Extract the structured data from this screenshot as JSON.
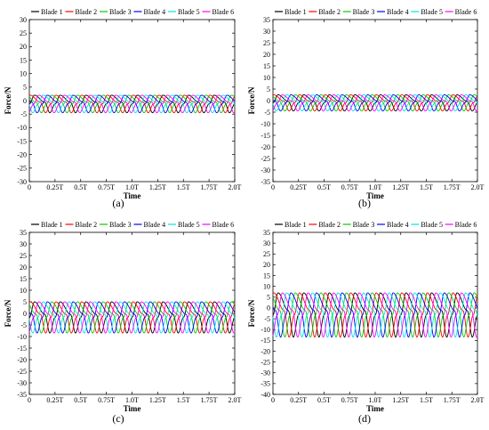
{
  "chart_data": [
    {
      "type": "line",
      "panel_label": "(a)",
      "xlabel": "Time",
      "ylabel": "Force/N",
      "ylim": [
        -30,
        30
      ],
      "yticks": [
        -30,
        -25,
        -20,
        -15,
        -10,
        -5,
        0,
        5,
        10,
        15,
        20,
        25,
        30
      ],
      "xlim": [
        0,
        2.0
      ],
      "xticks": [
        0,
        0.25,
        0.5,
        0.75,
        1.0,
        1.25,
        1.5,
        1.75,
        2.0
      ],
      "xtick_labels": [
        "0",
        "0.25T",
        "0.5T",
        "0.75T",
        "1.0T",
        "1.25T",
        "1.5T",
        "1.75T",
        "2.0T"
      ],
      "grid": false,
      "legend_position": "top",
      "waveform": {
        "max": 2,
        "min": -4.5,
        "period": 0.25,
        "peak_phase": 0.2
      },
      "series": [
        {
          "name": "Blade 1",
          "color": "#000000",
          "phase_offset": 0.0
        },
        {
          "name": "Blade 2",
          "color": "#ff0000",
          "phase_offset": 0.0417
        },
        {
          "name": "Blade 3",
          "color": "#00cc00",
          "phase_offset": 0.0833
        },
        {
          "name": "Blade 4",
          "color": "#0000ff",
          "phase_offset": 0.125
        },
        {
          "name": "Blade 5",
          "color": "#00e5e5",
          "phase_offset": 0.1667
        },
        {
          "name": "Blade 6",
          "color": "#ff00ff",
          "phase_offset": 0.2083
        }
      ]
    },
    {
      "type": "line",
      "panel_label": "(b)",
      "xlabel": "Time",
      "ylabel": "Force/N",
      "ylim": [
        -35,
        35
      ],
      "yticks": [
        -35,
        -30,
        -25,
        -20,
        -15,
        -10,
        -5,
        0,
        5,
        10,
        15,
        20,
        25,
        30,
        35
      ],
      "xlim": [
        0,
        2.0
      ],
      "xticks": [
        0,
        0.25,
        0.5,
        0.75,
        1.0,
        1.25,
        1.5,
        1.75,
        2.0
      ],
      "xtick_labels": [
        "0",
        "0.25T",
        "0.5T",
        "0.75T",
        "1.0T",
        "1.25T",
        "1.5T",
        "1.75T",
        "2.0T"
      ],
      "grid": false,
      "legend_position": "top",
      "waveform": {
        "max": 2.5,
        "min": -4.5,
        "period": 0.25,
        "peak_phase": 0.2
      },
      "series": [
        {
          "name": "Blade 1",
          "color": "#000000",
          "phase_offset": 0.0
        },
        {
          "name": "Blade 2",
          "color": "#ff0000",
          "phase_offset": 0.0417
        },
        {
          "name": "Blade 3",
          "color": "#00cc00",
          "phase_offset": 0.0833
        },
        {
          "name": "Blade 4",
          "color": "#0000ff",
          "phase_offset": 0.125
        },
        {
          "name": "Blade 5",
          "color": "#00e5e5",
          "phase_offset": 0.1667
        },
        {
          "name": "Blade 6",
          "color": "#ff00ff",
          "phase_offset": 0.2083
        }
      ]
    },
    {
      "type": "line",
      "panel_label": "(c)",
      "xlabel": "Time",
      "ylabel": "Force/N",
      "ylim": [
        -35,
        35
      ],
      "yticks": [
        -35,
        -30,
        -25,
        -20,
        -15,
        -10,
        -5,
        0,
        5,
        10,
        15,
        20,
        25,
        30,
        35
      ],
      "xlim": [
        0,
        2.0
      ],
      "xticks": [
        0,
        0.25,
        0.5,
        0.75,
        1.0,
        1.25,
        1.5,
        1.75,
        2.0
      ],
      "xtick_labels": [
        "0",
        "0.25T",
        "0.5T",
        "0.75T",
        "1.0T",
        "1.25T",
        "1.5T",
        "1.75T",
        "2.0T"
      ],
      "grid": false,
      "legend_position": "top",
      "waveform": {
        "max": 5,
        "min": -8.5,
        "period": 0.25,
        "peak_phase": 0.2
      },
      "series": [
        {
          "name": "Blade 1",
          "color": "#000000",
          "phase_offset": 0.0
        },
        {
          "name": "Blade 2",
          "color": "#ff0000",
          "phase_offset": 0.0417
        },
        {
          "name": "Blade 3",
          "color": "#00cc00",
          "phase_offset": 0.0833
        },
        {
          "name": "Blade 4",
          "color": "#0000ff",
          "phase_offset": 0.125
        },
        {
          "name": "Blade 5",
          "color": "#00e5e5",
          "phase_offset": 0.1667
        },
        {
          "name": "Blade 6",
          "color": "#ff00ff",
          "phase_offset": 0.2083
        }
      ]
    },
    {
      "type": "line",
      "panel_label": "(d)",
      "xlabel": "Time",
      "ylabel": "Force/N",
      "ylim": [
        -40,
        35
      ],
      "yticks": [
        -40,
        -35,
        -30,
        -25,
        -20,
        -15,
        -10,
        -5,
        0,
        5,
        10,
        15,
        20,
        25,
        30,
        35
      ],
      "xlim": [
        0,
        2.0
      ],
      "xticks": [
        0,
        0.25,
        0.5,
        0.75,
        1.0,
        1.25,
        1.5,
        1.75,
        2.0
      ],
      "xtick_labels": [
        "0",
        "0.25T",
        "0.5T",
        "0.75T",
        "1.0T",
        "1.25T",
        "1.5T",
        "1.75T",
        "2.0T"
      ],
      "grid": false,
      "legend_position": "top",
      "waveform": {
        "max": 7,
        "min": -13.5,
        "period": 0.25,
        "peak_phase": 0.2
      },
      "series": [
        {
          "name": "Blade 1",
          "color": "#000000",
          "phase_offset": 0.0
        },
        {
          "name": "Blade 2",
          "color": "#ff0000",
          "phase_offset": 0.0417
        },
        {
          "name": "Blade 3",
          "color": "#00cc00",
          "phase_offset": 0.0833
        },
        {
          "name": "Blade 4",
          "color": "#0000ff",
          "phase_offset": 0.125
        },
        {
          "name": "Blade 5",
          "color": "#00e5e5",
          "phase_offset": 0.1667
        },
        {
          "name": "Blade 6",
          "color": "#ff00ff",
          "phase_offset": 0.2083
        }
      ]
    }
  ]
}
